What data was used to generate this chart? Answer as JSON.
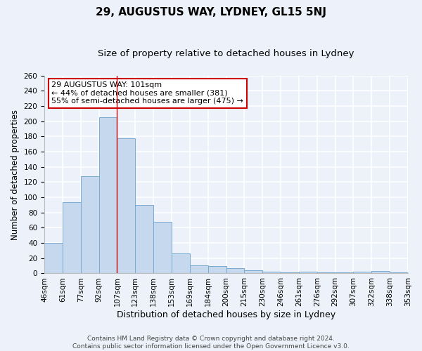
{
  "title": "29, AUGUSTUS WAY, LYDNEY, GL15 5NJ",
  "subtitle": "Size of property relative to detached houses in Lydney",
  "xlabel": "Distribution of detached houses by size in Lydney",
  "ylabel": "Number of detached properties",
  "categories": [
    "46sqm",
    "61sqm",
    "77sqm",
    "92sqm",
    "107sqm",
    "123sqm",
    "138sqm",
    "153sqm",
    "169sqm",
    "184sqm",
    "200sqm",
    "215sqm",
    "230sqm",
    "246sqm",
    "261sqm",
    "276sqm",
    "292sqm",
    "307sqm",
    "322sqm",
    "338sqm",
    "353sqm"
  ],
  "values": [
    40,
    94,
    128,
    205,
    178,
    90,
    68,
    26,
    11,
    10,
    7,
    4,
    2,
    1,
    2,
    1,
    1,
    2,
    3,
    1
  ],
  "bar_color": "#c5d8ee",
  "bar_edge_color": "#7aaad0",
  "background_color": "#edf2fa",
  "grid_color": "#ffffff",
  "ylim": [
    0,
    260
  ],
  "yticks": [
    0,
    20,
    40,
    60,
    80,
    100,
    120,
    140,
    160,
    180,
    200,
    220,
    240,
    260
  ],
  "annotation_text_line1": "29 AUGUSTUS WAY: 101sqm",
  "annotation_text_line2": "← 44% of detached houses are smaller (381)",
  "annotation_text_line3": "55% of semi-detached houses are larger (475) →",
  "annotation_box_facecolor": "#ffffff",
  "annotation_box_edgecolor": "#cc0000",
  "redline_color": "#cc0000",
  "footer_line1": "Contains HM Land Registry data © Crown copyright and database right 2024.",
  "footer_line2": "Contains public sector information licensed under the Open Government Licence v3.0.",
  "title_fontsize": 11,
  "subtitle_fontsize": 9.5,
  "xlabel_fontsize": 9,
  "ylabel_fontsize": 8.5,
  "tick_fontsize": 7.5,
  "annotation_fontsize": 8,
  "footer_fontsize": 6.5
}
